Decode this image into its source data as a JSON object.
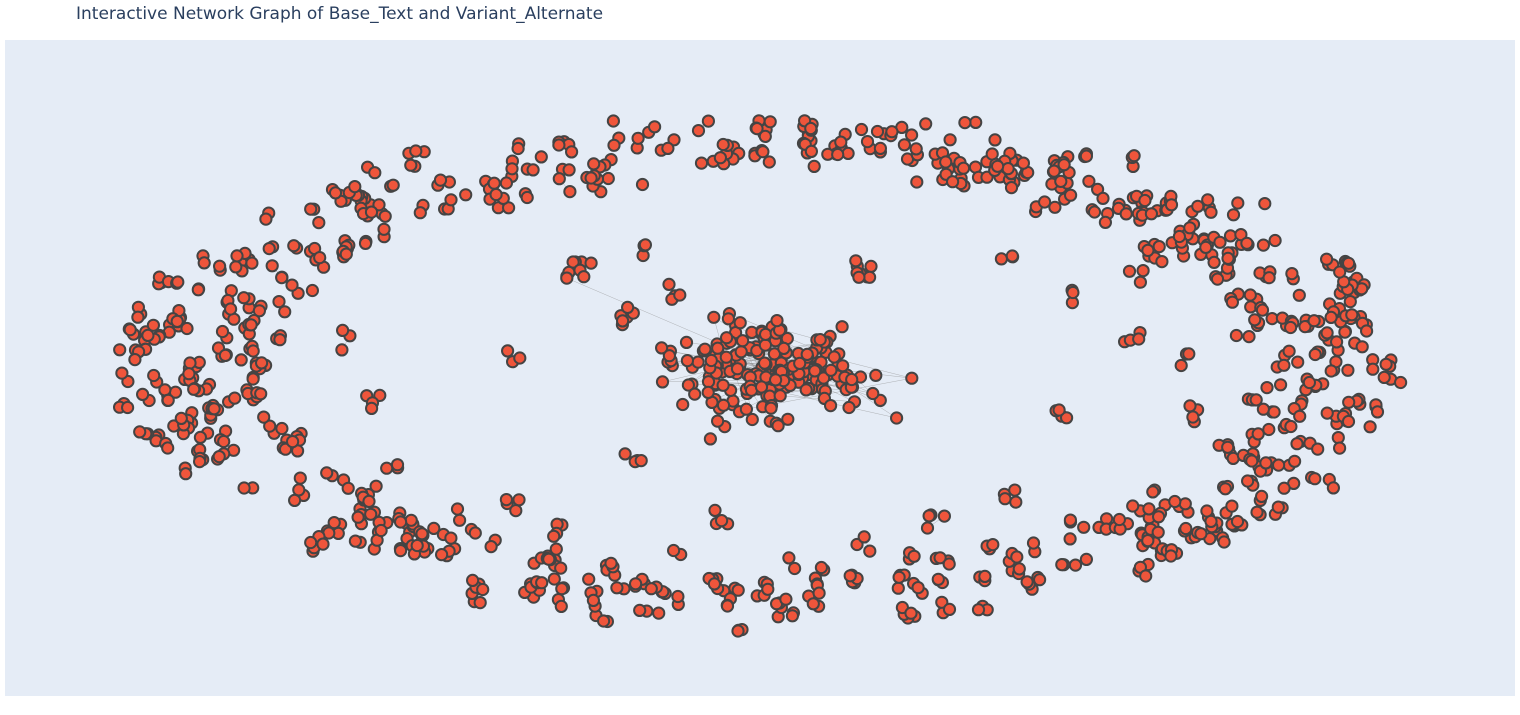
{
  "chart_data": {
    "type": "scatter",
    "subtype": "network-graph",
    "title": "Interactive Network Graph of Base_Text and Variant_Alternate",
    "xlabel": "",
    "ylabel": "",
    "axes_visible": false,
    "grid": false,
    "legend": "none",
    "node_count_approx": 1200,
    "edges": "faint gray lines, mostly within the central cluster",
    "layout": "force-directed: dense elliptical ring of small node groups around a sparse interior with one large central cluster and scattered small clusters"
  },
  "colors": {
    "background": "#e5ecf6",
    "node_fill": "#ef553b",
    "node_outline": "#444444",
    "edge": "#888888",
    "title": "#2a3f5f"
  }
}
